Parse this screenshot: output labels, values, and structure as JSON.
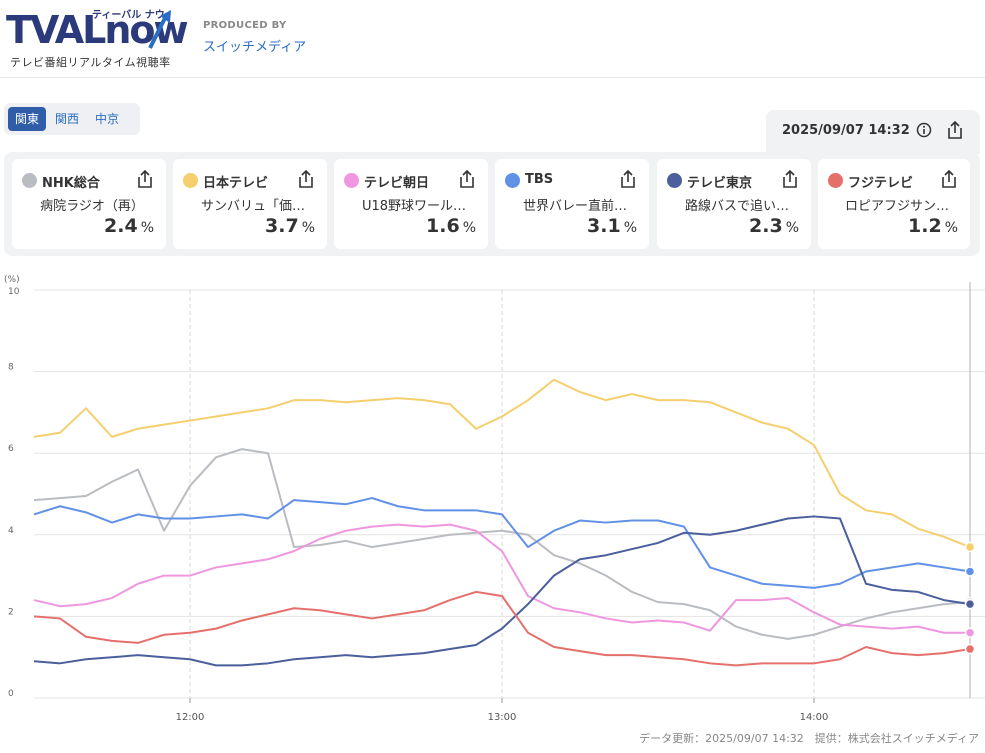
{
  "header": {
    "logo_main": "TVAL",
    "logo_now": "now",
    "logo_kana": "ティーバル ナウ",
    "logo_sub": "テレビ番組リアルタイム視聴率",
    "produced_by": "PRODUCED BY",
    "producer": "スイッチメディア"
  },
  "regions": [
    {
      "label": "関東",
      "active": true
    },
    {
      "label": "関西",
      "active": false
    },
    {
      "label": "中京",
      "active": false
    }
  ],
  "timestamp": "2025/09/07 14:32",
  "channels": [
    {
      "name": "NHK総合",
      "program": "病院ラジオ（再）",
      "value": "2.4",
      "unit": "%",
      "color": "#b9bcc1"
    },
    {
      "name": "日本テレビ",
      "program": "サンバリュ「価…",
      "value": "3.7",
      "unit": "%",
      "color": "#f5cf6e"
    },
    {
      "name": "テレビ朝日",
      "program": "U18野球ワール…",
      "value": "1.6",
      "unit": "%",
      "color": "#ee97e0"
    },
    {
      "name": "TBS",
      "program": "世界バレー直前…",
      "value": "3.1",
      "unit": "%",
      "color": "#6191e6"
    },
    {
      "name": "テレビ東京",
      "program": "路線バスで追い…",
      "value": "2.3",
      "unit": "%",
      "color": "#4b5f9c"
    },
    {
      "name": "フジテレビ",
      "program": "ロピアフジサン…",
      "value": "1.2",
      "unit": "%",
      "color": "#e5706b"
    }
  ],
  "chart_data": {
    "type": "line",
    "ylabel": "(%)",
    "ylim": [
      0,
      10
    ],
    "yticks": [
      "0",
      "2",
      "4",
      "6",
      "8",
      "10"
    ],
    "xticks": [
      "12:00",
      "13:00",
      "14:00"
    ],
    "grid": true,
    "x_minutes": [
      0,
      5,
      10,
      15,
      20,
      25,
      30,
      35,
      40,
      45,
      50,
      55,
      60,
      65,
      70,
      75,
      80,
      85,
      90,
      95,
      100,
      105,
      110,
      115,
      120,
      125,
      130,
      135,
      140,
      145,
      150,
      155,
      160,
      165,
      170,
      175,
      180
    ],
    "x_note": "minutes after 11:30",
    "series": [
      {
        "name": "NHK総合",
        "color": "#b9bcc1",
        "values": [
          4.85,
          4.9,
          4.95,
          5.3,
          5.6,
          4.1,
          5.2,
          5.9,
          6.1,
          6.0,
          3.7,
          3.75,
          3.85,
          3.7,
          3.8,
          3.9,
          4.0,
          4.05,
          4.1,
          4.0,
          3.5,
          3.3,
          3.0,
          2.6,
          2.35,
          2.3,
          2.15,
          1.75,
          1.55,
          1.45,
          1.55,
          1.75,
          1.95,
          2.1,
          2.2,
          2.3,
          2.35
        ]
      },
      {
        "name": "日本テレビ",
        "color": "#f5cf6e",
        "values": [
          6.4,
          6.5,
          7.1,
          6.4,
          6.6,
          6.7,
          6.8,
          6.9,
          7.0,
          7.1,
          7.3,
          7.3,
          7.25,
          7.3,
          7.35,
          7.3,
          7.2,
          6.6,
          6.9,
          7.3,
          7.8,
          7.5,
          7.3,
          7.45,
          7.3,
          7.3,
          7.25,
          7.0,
          6.75,
          6.6,
          6.2,
          5.0,
          4.6,
          4.5,
          4.15,
          3.95,
          3.7
        ]
      },
      {
        "name": "テレビ朝日",
        "color": "#ee97e0",
        "values": [
          2.4,
          2.25,
          2.3,
          2.45,
          2.8,
          3.0,
          3.0,
          3.2,
          3.3,
          3.4,
          3.6,
          3.9,
          4.1,
          4.2,
          4.25,
          4.2,
          4.25,
          4.1,
          3.6,
          2.5,
          2.2,
          2.1,
          1.95,
          1.85,
          1.9,
          1.85,
          1.65,
          2.4,
          2.4,
          2.45,
          2.1,
          1.8,
          1.75,
          1.7,
          1.75,
          1.6,
          1.6
        ]
      },
      {
        "name": "TBS",
        "color": "#6191e6",
        "values": [
          4.5,
          4.7,
          4.55,
          4.3,
          4.5,
          4.4,
          4.4,
          4.45,
          4.5,
          4.4,
          4.85,
          4.8,
          4.75,
          4.9,
          4.7,
          4.6,
          4.6,
          4.6,
          4.5,
          3.7,
          4.1,
          4.35,
          4.3,
          4.35,
          4.35,
          4.2,
          3.2,
          3.0,
          2.8,
          2.75,
          2.7,
          2.8,
          3.1,
          3.2,
          3.3,
          3.2,
          3.1
        ]
      },
      {
        "name": "テレビ東京",
        "color": "#4b5f9c",
        "values": [
          0.9,
          0.85,
          0.95,
          1.0,
          1.05,
          1.0,
          0.95,
          0.8,
          0.8,
          0.85,
          0.95,
          1.0,
          1.05,
          1.0,
          1.05,
          1.1,
          1.2,
          1.3,
          1.7,
          2.3,
          3.0,
          3.4,
          3.5,
          3.65,
          3.8,
          4.05,
          4.0,
          4.1,
          4.25,
          4.4,
          4.45,
          4.4,
          2.8,
          2.65,
          2.6,
          2.4,
          2.3
        ]
      },
      {
        "name": "フジテレビ",
        "color": "#e5706b",
        "values": [
          2.0,
          1.95,
          1.5,
          1.4,
          1.35,
          1.55,
          1.6,
          1.7,
          1.9,
          2.05,
          2.2,
          2.15,
          2.05,
          1.95,
          2.05,
          2.15,
          2.4,
          2.6,
          2.5,
          1.6,
          1.25,
          1.15,
          1.05,
          1.05,
          1.0,
          0.95,
          0.85,
          0.8,
          0.85,
          0.85,
          0.85,
          0.95,
          1.25,
          1.1,
          1.05,
          1.1,
          1.2
        ]
      }
    ]
  },
  "footer": "データ更新：2025/09/07 14:32　提供：株式会社スイッチメディア"
}
